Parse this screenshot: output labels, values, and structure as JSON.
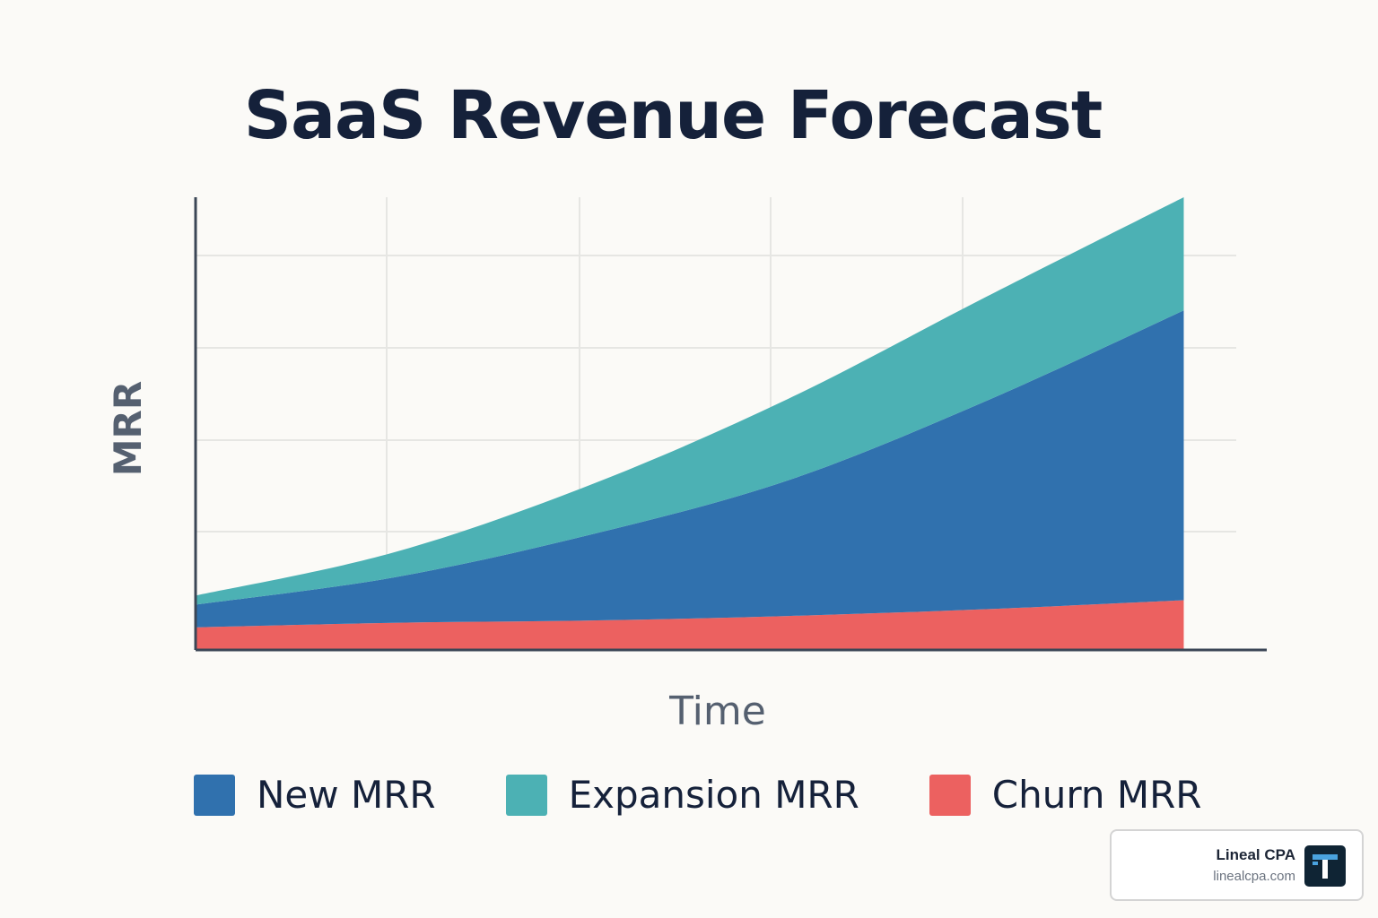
{
  "chart_data": {
    "type": "area",
    "stacked": true,
    "title": "SaaS Revenue Forecast",
    "xlabel": "Time",
    "ylabel": "MRR",
    "x": [
      0,
      1,
      2,
      3,
      4,
      5
    ],
    "xlim": [
      0,
      5.42
    ],
    "ylim": [
      0,
      100
    ],
    "grid": true,
    "legend_position": "bottom",
    "series": [
      {
        "name": "Churn MRR",
        "color": "#ec6160",
        "values": [
          5,
          6,
          6.5,
          7.5,
          9,
          11
        ]
      },
      {
        "name": "New MRR",
        "color": "#3071ae",
        "values": [
          5,
          10,
          19,
          30,
          46,
          64
        ]
      },
      {
        "name": "Expansion MRR",
        "color": "#4cb1b4",
        "values": [
          2,
          5.5,
          11,
          18,
          23,
          25
        ]
      }
    ],
    "legend_order": [
      "New MRR",
      "Expansion MRR",
      "Churn MRR"
    ]
  },
  "branding": {
    "name": "Lineal CPA",
    "url": "linealcpa.com",
    "logo_icon": "lineal-logo-icon"
  }
}
